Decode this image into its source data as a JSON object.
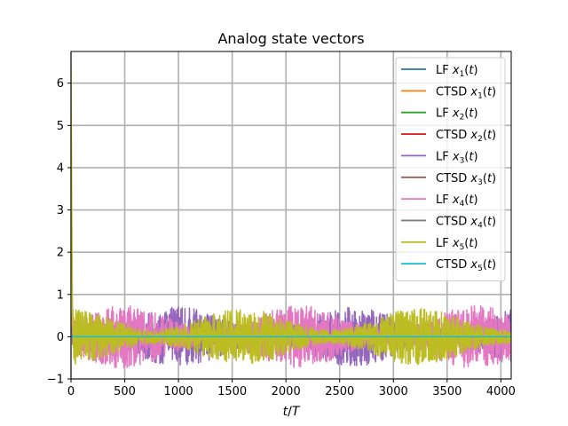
{
  "chart_data": {
    "type": "line",
    "title": "Analog state vectors",
    "xlabel_base": "t/T",
    "ylabel": "",
    "xlim": [
      0,
      4096
    ],
    "ylim": [
      -1,
      6.75
    ],
    "xticks": [
      0,
      500,
      1000,
      1500,
      2000,
      2500,
      3000,
      3500,
      4000
    ],
    "yticks": [
      -1,
      0,
      1,
      2,
      3,
      4,
      5,
      6
    ],
    "grid": true,
    "legend_position": "upper right",
    "series": [
      {
        "name": "LF x1(t)",
        "label_prefix": "LF",
        "label_var": "x",
        "label_sub": "1",
        "label_arg": "(t)",
        "color": "#1f77b4",
        "kind": "flat",
        "value": 0
      },
      {
        "name": "CTSD x1(t)",
        "label_prefix": "CTSD",
        "label_var": "x",
        "label_sub": "1",
        "label_arg": "(t)",
        "color": "#ff7f0e",
        "kind": "flat",
        "value": 0
      },
      {
        "name": "LF x2(t)",
        "label_prefix": "LF",
        "label_var": "x",
        "label_sub": "2",
        "label_arg": "(t)",
        "color": "#2ca02c",
        "kind": "flat",
        "value": 0
      },
      {
        "name": "CTSD x2(t)",
        "label_prefix": "CTSD",
        "label_var": "x",
        "label_sub": "2",
        "label_arg": "(t)",
        "color": "#d62728",
        "kind": "flat",
        "value": 0
      },
      {
        "name": "LF x3(t)",
        "label_prefix": "LF",
        "label_var": "x",
        "label_sub": "3",
        "label_arg": "(t)",
        "color": "#9467bd",
        "kind": "noise",
        "amplitude": 0.58,
        "peak": 0.55
      },
      {
        "name": "CTSD x3(t)",
        "label_prefix": "CTSD",
        "label_var": "x",
        "label_sub": "3",
        "label_arg": "(t)",
        "color": "#8c564b",
        "kind": "flat",
        "value": 0
      },
      {
        "name": "LF x4(t)",
        "label_prefix": "LF",
        "label_var": "x",
        "label_sub": "4",
        "label_arg": "(t)",
        "color": "#e377c2",
        "kind": "noise",
        "amplitude": 0.62,
        "peak": 0.6
      },
      {
        "name": "CTSD x4(t)",
        "label_prefix": "CTSD",
        "label_var": "x",
        "label_sub": "4",
        "label_arg": "(t)",
        "color": "#7f7f7f",
        "kind": "flat",
        "value": 0
      },
      {
        "name": "LF x5(t)",
        "label_prefix": "LF",
        "label_var": "x",
        "label_sub": "5",
        "label_arg": "(t)",
        "color": "#bcbd22",
        "kind": "noise",
        "amplitude": 0.55,
        "peak": 6.4
      },
      {
        "name": "CTSD x5(t)",
        "label_prefix": "CTSD",
        "label_var": "x",
        "label_sub": "5",
        "label_arg": "(t)",
        "color": "#17becf",
        "kind": "flat",
        "value": 0
      }
    ]
  }
}
